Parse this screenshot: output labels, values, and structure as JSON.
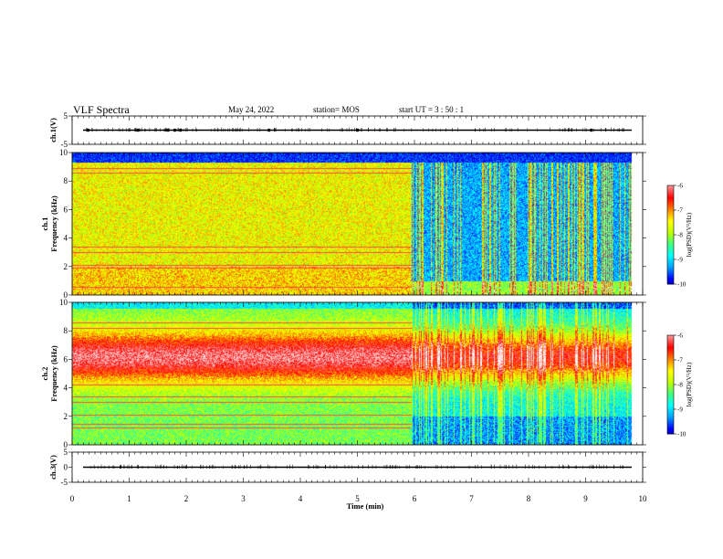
{
  "header": {
    "title": "VLF Spectra",
    "date": "May 24, 2022",
    "station": "station= MOS",
    "start": "start  UT =  3  : 50 : 1"
  },
  "colors": {
    "colormap": [
      "#000080",
      "#0000ff",
      "#00a0ff",
      "#00ffff",
      "#40ff80",
      "#c0ff00",
      "#ffff00",
      "#ff8000",
      "#ff0000",
      "#ff9090",
      "#ffffff"
    ]
  },
  "chart_data": [
    {
      "type": "line",
      "name": "ch1-waveform",
      "ylabel": "ch.1(V)",
      "xlim": [
        0,
        10
      ],
      "ylim": [
        -5,
        5
      ],
      "yticks": [
        "5",
        "-5"
      ],
      "baseline": 0,
      "marker_times": [
        0.28,
        1.15,
        1.68,
        1.8,
        1.9,
        3.45,
        5.0,
        9.1
      ]
    },
    {
      "type": "heatmap",
      "name": "ch1-spectrogram",
      "ylabel": "ch.1\nFrequency  (kHz)",
      "xlim": [
        0,
        10
      ],
      "ylim": [
        0,
        10
      ],
      "data_extent_min": 9.8,
      "yticks": [
        "0",
        "2",
        "4",
        "6",
        "8",
        "10"
      ],
      "colorbar": {
        "label": "log(PSD)(V²/Hz)",
        "range": [
          -10,
          -6
        ],
        "ticks": [
          "-6",
          "-7",
          "-8",
          "-9",
          "-10"
        ]
      },
      "lines_khz": [
        0.6,
        1.9,
        2.1,
        3.0,
        3.4,
        8.6,
        8.9
      ]
    },
    {
      "type": "heatmap",
      "name": "ch2-spectrogram",
      "ylabel": "ch.2\nFrequency  (kHz)",
      "xlim": [
        0,
        10
      ],
      "ylim": [
        0,
        10
      ],
      "data_extent_min": 9.8,
      "yticks": [
        "0",
        "2",
        "4",
        "6",
        "8",
        "10"
      ],
      "colorbar": {
        "label": "log(PSD)(V²/Hz)",
        "range": [
          -10,
          -6
        ],
        "ticks": [
          "-6",
          "-7",
          "-8",
          "-9",
          "-10"
        ]
      },
      "lines_khz": [
        1.2,
        1.5,
        2.1,
        3.0,
        3.4,
        4.2,
        8.2,
        8.6
      ]
    },
    {
      "type": "line",
      "name": "ch3-waveform",
      "ylabel": "ch.3(V)",
      "xlim": [
        0,
        10
      ],
      "ylim": [
        -5,
        5
      ],
      "yticks": [
        "5",
        "0",
        "-5"
      ],
      "baseline": 0
    }
  ],
  "xaxis": {
    "label": "Time  (min)",
    "ticks": [
      "0",
      "1",
      "2",
      "3",
      "4",
      "5",
      "6",
      "7",
      "8",
      "9",
      "10"
    ]
  }
}
